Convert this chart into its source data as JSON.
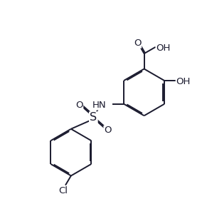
{
  "background_color": "#ffffff",
  "line_color": "#1a1a2e",
  "line_width": 1.4,
  "dbo": 0.055,
  "font_size": 9.5,
  "figsize": [
    2.91,
    2.93
  ],
  "dpi": 100,
  "xlim": [
    0,
    10
  ],
  "ylim": [
    0,
    10
  ]
}
